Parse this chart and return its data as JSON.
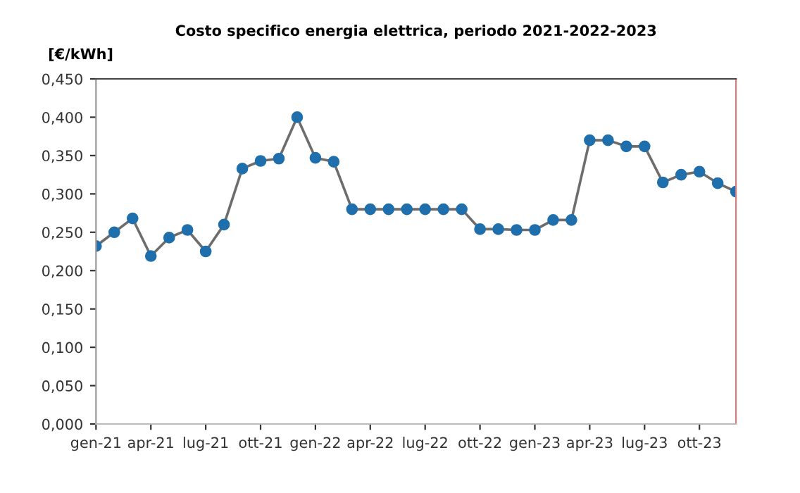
{
  "chart_data": {
    "type": "line",
    "title": "Costo specifico energia elettrica, periodo 2021-2022-2023",
    "ylabel": "[€/kWh]",
    "categories": [
      "gen-21",
      null,
      null,
      "apr-21",
      null,
      null,
      "lug-21",
      null,
      null,
      "ott-21",
      null,
      null,
      "gen-22",
      null,
      null,
      "apr-22",
      null,
      null,
      "lug-22",
      null,
      null,
      "ott-22",
      null,
      null,
      "gen-23",
      null,
      null,
      "apr-23",
      null,
      null,
      "lug-23",
      null,
      null,
      "ott-23",
      null,
      null
    ],
    "series": [
      {
        "color": "#1f6fad",
        "values": [
          0.232,
          0.25,
          0.268,
          0.219,
          0.243,
          0.253,
          0.225,
          0.26,
          0.333,
          0.343,
          0.346,
          0.4,
          0.347,
          0.342,
          0.28,
          0.28,
          0.28,
          0.28,
          0.28,
          0.28,
          0.28,
          0.254,
          0.254,
          0.253,
          0.253,
          0.266,
          0.266,
          0.37,
          0.37,
          0.362,
          0.362,
          0.315,
          0.325,
          0.329,
          0.314,
          0.303
        ]
      }
    ],
    "ylim": [
      0,
      0.45
    ],
    "yticks": [
      {
        "value": 0,
        "label": "0,000"
      },
      {
        "value": 0.05,
        "label": "0,050"
      },
      {
        "value": 0.1,
        "label": "0,100"
      },
      {
        "value": 0.15,
        "label": "0,150"
      },
      {
        "value": 0.2,
        "label": "0,200"
      },
      {
        "value": 0.25,
        "label": "0,250"
      },
      {
        "value": 0.3,
        "label": "0,300"
      },
      {
        "value": 0.35,
        "label": "0,350"
      },
      {
        "value": 0.4,
        "label": "0,400"
      },
      {
        "value": 0.45,
        "label": "0,450"
      }
    ],
    "grid": false,
    "legend": false,
    "marker": "circle",
    "line_style": "solid"
  }
}
